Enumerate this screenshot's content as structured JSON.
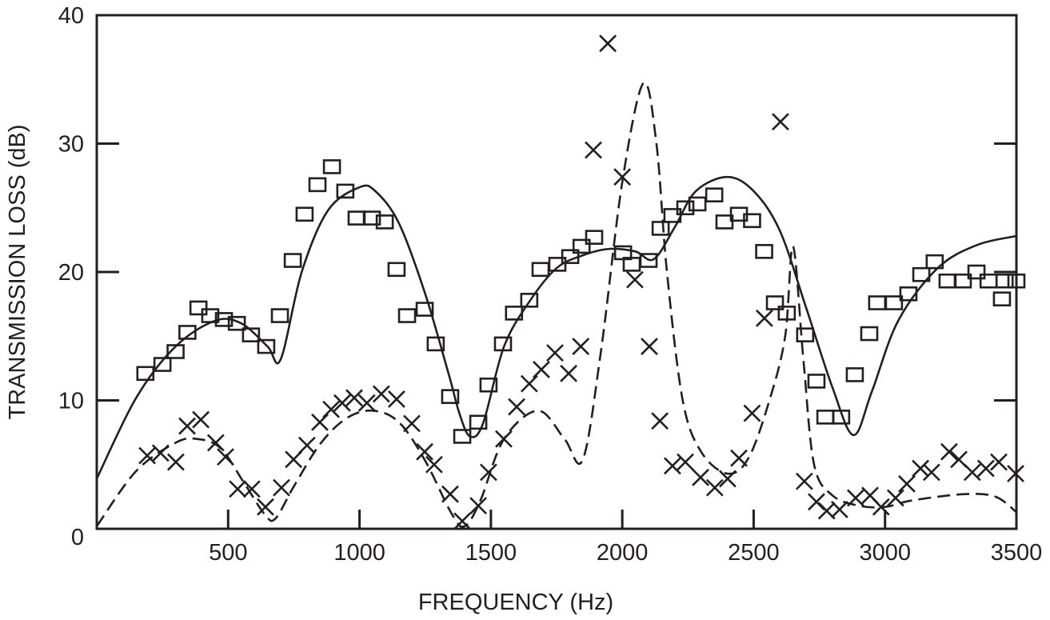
{
  "chart_data": {
    "type": "scatter",
    "title": "",
    "xlabel": "FREQUENCY (Hz)",
    "ylabel": "TRANSMISSION LOSS (dB)",
    "xlim": [
      0,
      3500
    ],
    "ylim": [
      0,
      40
    ],
    "xticks": [
      500,
      1000,
      1500,
      2000,
      2500,
      3000,
      3500
    ],
    "yticks": [
      0,
      10,
      20,
      30,
      40
    ],
    "grid": false,
    "legend": null,
    "series": [
      {
        "name": "measured (squares)",
        "marker": "square",
        "points": [
          [
            185,
            12.1
          ],
          [
            250,
            12.8
          ],
          [
            300,
            13.8
          ],
          [
            345,
            15.3
          ],
          [
            387,
            17.2
          ],
          [
            432,
            16.6
          ],
          [
            484,
            16.3
          ],
          [
            533,
            16.0
          ],
          [
            587,
            15.1
          ],
          [
            645,
            14.2
          ],
          [
            697,
            16.6
          ],
          [
            746,
            20.9
          ],
          [
            791,
            24.5
          ],
          [
            840,
            26.8
          ],
          [
            895,
            28.2
          ],
          [
            946,
            26.3
          ],
          [
            989,
            24.2
          ],
          [
            1047,
            24.2
          ],
          [
            1096,
            23.9
          ],
          [
            1141,
            20.2
          ],
          [
            1181,
            16.6
          ],
          [
            1248,
            17.1
          ],
          [
            1290,
            14.4
          ],
          [
            1345,
            10.3
          ],
          [
            1391,
            7.2
          ],
          [
            1452,
            8.3
          ],
          [
            1491,
            11.2
          ],
          [
            1546,
            14.4
          ],
          [
            1588,
            16.8
          ],
          [
            1646,
            17.8
          ],
          [
            1689,
            20.2
          ],
          [
            1753,
            20.6
          ],
          [
            1802,
            21.2
          ],
          [
            1845,
            22.0
          ],
          [
            1893,
            22.7
          ],
          [
            2003,
            21.5
          ],
          [
            2036,
            20.6
          ],
          [
            2100,
            20.9
          ],
          [
            2146,
            23.4
          ],
          [
            2191,
            24.4
          ],
          [
            2240,
            25.0
          ],
          [
            2286,
            25.3
          ],
          [
            2350,
            26.0
          ],
          [
            2389,
            23.9
          ],
          [
            2444,
            24.5
          ],
          [
            2494,
            24.0
          ],
          [
            2540,
            21.6
          ],
          [
            2581,
            17.6
          ],
          [
            2626,
            16.8
          ],
          [
            2696,
            15.1
          ],
          [
            2739,
            11.5
          ],
          [
            2773,
            8.7
          ],
          [
            2833,
            8.7
          ],
          [
            2885,
            12.0
          ],
          [
            2940,
            15.2
          ],
          [
            2970,
            17.6
          ],
          [
            3034,
            17.6
          ],
          [
            3089,
            18.3
          ],
          [
            3138,
            19.8
          ],
          [
            3189,
            20.8
          ],
          [
            3238,
            19.3
          ],
          [
            3296,
            19.3
          ],
          [
            3348,
            20.0
          ],
          [
            3394,
            19.3
          ],
          [
            3445,
            17.9
          ],
          [
            3455,
            19.3
          ],
          [
            3500,
            19.3
          ]
        ]
      },
      {
        "name": "measured (crosses)",
        "marker": "x",
        "points": [
          [
            192,
            5.7
          ],
          [
            243,
            5.9
          ],
          [
            301,
            5.2
          ],
          [
            344,
            8.0
          ],
          [
            396,
            8.5
          ],
          [
            453,
            6.7
          ],
          [
            490,
            5.6
          ],
          [
            536,
            3.1
          ],
          [
            590,
            3.1
          ],
          [
            642,
            1.7
          ],
          [
            703,
            3.2
          ],
          [
            749,
            5.4
          ],
          [
            800,
            6.5
          ],
          [
            849,
            8.3
          ],
          [
            892,
            9.3
          ],
          [
            934,
            9.8
          ],
          [
            980,
            10.2
          ],
          [
            1028,
            9.8
          ],
          [
            1083,
            10.5
          ],
          [
            1141,
            10.1
          ],
          [
            1199,
            8.2
          ],
          [
            1248,
            6.0
          ],
          [
            1284,
            5.0
          ],
          [
            1345,
            2.7
          ],
          [
            1391,
            0.6
          ],
          [
            1452,
            1.8
          ],
          [
            1491,
            4.4
          ],
          [
            1549,
            7.0
          ],
          [
            1598,
            9.5
          ],
          [
            1646,
            11.3
          ],
          [
            1692,
            12.4
          ],
          [
            1744,
            13.7
          ],
          [
            1796,
            12.1
          ],
          [
            1842,
            14.2
          ],
          [
            1890,
            29.5
          ],
          [
            1945,
            37.8
          ],
          [
            2000,
            27.4
          ],
          [
            2048,
            19.4
          ],
          [
            2103,
            14.2
          ],
          [
            2143,
            8.4
          ],
          [
            2191,
            4.9
          ],
          [
            2240,
            5.2
          ],
          [
            2298,
            4.0
          ],
          [
            2352,
            3.2
          ],
          [
            2401,
            3.9
          ],
          [
            2444,
            5.5
          ],
          [
            2494,
            9.0
          ],
          [
            2541,
            16.4
          ],
          [
            2602,
            31.7
          ],
          [
            2693,
            3.7
          ],
          [
            2739,
            2.1
          ],
          [
            2778,
            1.4
          ],
          [
            2827,
            1.5
          ],
          [
            2888,
            2.4
          ],
          [
            2943,
            2.6
          ],
          [
            2985,
            1.7
          ],
          [
            3040,
            2.4
          ],
          [
            3083,
            3.5
          ],
          [
            3135,
            4.7
          ],
          [
            3177,
            4.4
          ],
          [
            3244,
            6.0
          ],
          [
            3281,
            5.4
          ],
          [
            3332,
            4.4
          ],
          [
            3384,
            4.7
          ],
          [
            3433,
            5.2
          ],
          [
            3497,
            4.3
          ]
        ]
      },
      {
        "name": "theory (solid)",
        "style": "solid",
        "points": [
          [
            0,
            3.9
          ],
          [
            150,
            10.2
          ],
          [
            300,
            14.2
          ],
          [
            450,
            16.2
          ],
          [
            550,
            16.0
          ],
          [
            650,
            14.2
          ],
          [
            700,
            13.2
          ],
          [
            780,
            20.0
          ],
          [
            880,
            24.8
          ],
          [
            1000,
            26.6
          ],
          [
            1060,
            26.3
          ],
          [
            1150,
            23.8
          ],
          [
            1250,
            18.3
          ],
          [
            1340,
            12.0
          ],
          [
            1380,
            9.0
          ],
          [
            1420,
            7.2
          ],
          [
            1470,
            8.2
          ],
          [
            1550,
            14.2
          ],
          [
            1650,
            17.8
          ],
          [
            1750,
            20.3
          ],
          [
            1850,
            21.3
          ],
          [
            1950,
            21.8
          ],
          [
            2050,
            21.6
          ],
          [
            2120,
            21.0
          ],
          [
            2200,
            23.5
          ],
          [
            2280,
            26.3
          ],
          [
            2400,
            27.4
          ],
          [
            2500,
            26.3
          ],
          [
            2600,
            23.2
          ],
          [
            2700,
            17.2
          ],
          [
            2800,
            11.0
          ],
          [
            2880,
            7.3
          ],
          [
            2950,
            10.7
          ],
          [
            3050,
            16.2
          ],
          [
            3200,
            20.3
          ],
          [
            3350,
            22.1
          ],
          [
            3500,
            22.8
          ]
        ]
      },
      {
        "name": "theory (dashed)",
        "style": "dashed",
        "points": [
          [
            0,
            0.2
          ],
          [
            150,
            4.5
          ],
          [
            300,
            6.7
          ],
          [
            380,
            7.0
          ],
          [
            470,
            6.3
          ],
          [
            560,
            3.6
          ],
          [
            640,
            1.1
          ],
          [
            680,
            0.8
          ],
          [
            750,
            3.3
          ],
          [
            850,
            6.6
          ],
          [
            950,
            8.6
          ],
          [
            1050,
            9.2
          ],
          [
            1150,
            8.3
          ],
          [
            1250,
            5.3
          ],
          [
            1350,
            1.2
          ],
          [
            1400,
            0.2
          ],
          [
            1460,
            2.2
          ],
          [
            1550,
            7.0
          ],
          [
            1680,
            9.2
          ],
          [
            1780,
            7.0
          ],
          [
            1850,
            5.4
          ],
          [
            1920,
            14.0
          ],
          [
            2000,
            27.0
          ],
          [
            2080,
            34.7
          ],
          [
            2130,
            30.0
          ],
          [
            2170,
            20.0
          ],
          [
            2230,
            10.0
          ],
          [
            2300,
            6.0
          ],
          [
            2400,
            4.3
          ],
          [
            2480,
            5.5
          ],
          [
            2560,
            10.0
          ],
          [
            2620,
            15.0
          ],
          [
            2650,
            22.0
          ],
          [
            2690,
            13.0
          ],
          [
            2730,
            5.0
          ],
          [
            2800,
            2.6
          ],
          [
            2900,
            1.8
          ],
          [
            3000,
            1.7
          ],
          [
            3100,
            2.2
          ],
          [
            3300,
            2.7
          ],
          [
            3420,
            2.5
          ],
          [
            3500,
            1.3
          ]
        ]
      }
    ]
  },
  "axes": {
    "x_tick_labels": [
      "500",
      "1000",
      "1500",
      "2000",
      "2500",
      "3000",
      "3500"
    ],
    "y_tick_labels": [
      "0",
      "10",
      "20",
      "30",
      "40"
    ],
    "x_title": "FREQUENCY (Hz)",
    "y_title": "TRANSMISSION LOSS (dB)"
  },
  "colors": {
    "ink": "#231f20",
    "background": "#ffffff"
  }
}
